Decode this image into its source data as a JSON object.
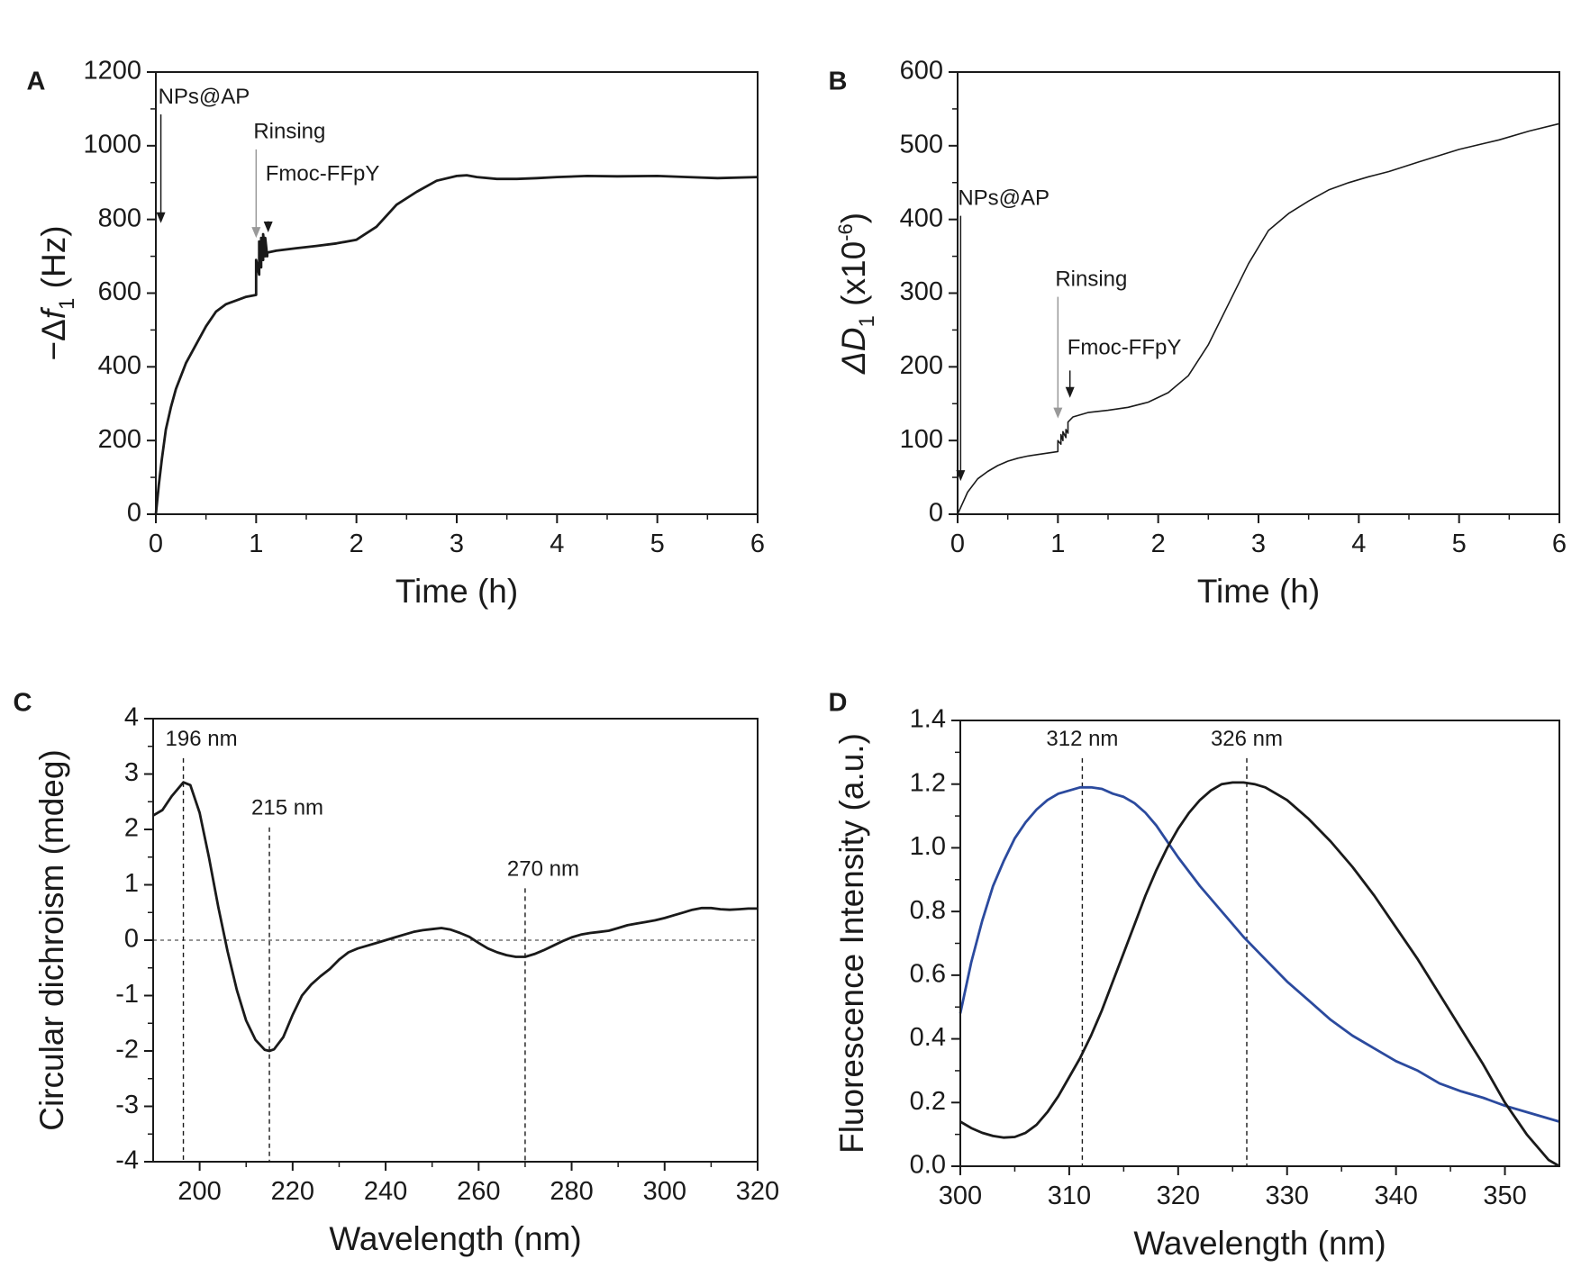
{
  "chart_data": [
    {
      "panel": "A",
      "type": "line",
      "xlabel": "Time (h)",
      "ylabel_parts": [
        "−Δ",
        "f",
        "1",
        " (Hz)"
      ],
      "xlim": [
        0,
        6
      ],
      "ylim": [
        0,
        1200
      ],
      "xticks": [
        0,
        1,
        2,
        3,
        4,
        5,
        6
      ],
      "xtick_labels": [
        "0",
        "1",
        "2",
        "3",
        "4",
        "5",
        "6"
      ],
      "yticks": [
        0,
        200,
        400,
        600,
        800,
        1000,
        1200
      ],
      "ytick_labels": [
        "0",
        "200",
        "400",
        "600",
        "800",
        "1000",
        "1200"
      ],
      "annotations": [
        {
          "text": "NPs@AP",
          "x": 0.05,
          "arrow_to": 790,
          "arrow_from": 1085,
          "text_y": 1115,
          "color": "#1a1a1a"
        },
        {
          "text": "Rinsing",
          "x": 1.0,
          "arrow_to": 750,
          "arrow_from": 990,
          "text_y": 1020,
          "color": "#999999"
        },
        {
          "text": "Fmoc-FFpY",
          "x": 1.12,
          "arrow_to": 765,
          "arrow_from": 795,
          "text_y": 905,
          "color": "#1a1a1a"
        }
      ],
      "series": [
        {
          "name": "-Δf1",
          "color": "#1a1a1a",
          "x": [
            0,
            0.03,
            0.06,
            0.1,
            0.15,
            0.2,
            0.3,
            0.4,
            0.5,
            0.6,
            0.7,
            0.8,
            0.9,
            1.0,
            1.0,
            1.03,
            1.03,
            1.05,
            1.05,
            1.07,
            1.07,
            1.09,
            1.09,
            1.11,
            1.11,
            1.2,
            1.4,
            1.6,
            1.8,
            2.0,
            2.2,
            2.4,
            2.6,
            2.8,
            3.0,
            3.1,
            3.2,
            3.4,
            3.6,
            3.8,
            4.0,
            4.3,
            4.6,
            5.0,
            5.3,
            5.6,
            6.0
          ],
          "y": [
            0,
            80,
            150,
            230,
            290,
            340,
            410,
            460,
            510,
            550,
            570,
            580,
            590,
            595,
            690,
            650,
            740,
            670,
            750,
            690,
            760,
            700,
            750,
            700,
            710,
            715,
            722,
            728,
            735,
            745,
            780,
            840,
            875,
            905,
            918,
            920,
            915,
            910,
            910,
            912,
            915,
            918,
            917,
            918,
            915,
            912,
            915
          ]
        }
      ]
    },
    {
      "panel": "B",
      "type": "line",
      "xlabel": "Time (h)",
      "ylabel_parts": [
        "Δ",
        "D",
        "1",
        " (x10",
        "-6",
        ")"
      ],
      "xlim": [
        0,
        6
      ],
      "ylim": [
        0,
        600
      ],
      "xticks": [
        0,
        1,
        2,
        3,
        4,
        5,
        6
      ],
      "xtick_labels": [
        "0",
        "1",
        "2",
        "3",
        "4",
        "5",
        "6"
      ],
      "yticks": [
        0,
        100,
        200,
        300,
        400,
        500,
        600
      ],
      "ytick_labels": [
        "0",
        "100",
        "200",
        "300",
        "400",
        "500",
        "600"
      ],
      "annotations": [
        {
          "text": "NPs@AP",
          "x": 0.03,
          "arrow_to": 45,
          "arrow_from": 405,
          "text_y": 420,
          "color": "#1a1a1a"
        },
        {
          "text": "Rinsing",
          "x": 1.0,
          "arrow_to": 130,
          "arrow_from": 295,
          "text_y": 310,
          "color": "#999999"
        },
        {
          "text": "Fmoc-FFpY",
          "x": 1.12,
          "arrow_to": 158,
          "arrow_from": 195,
          "text_y": 217,
          "color": "#1a1a1a"
        }
      ],
      "series": [
        {
          "name": "ΔD1",
          "color": "#1a1a1a",
          "x": [
            0,
            0.05,
            0.1,
            0.2,
            0.3,
            0.4,
            0.5,
            0.6,
            0.7,
            0.8,
            0.9,
            1.0,
            1.0,
            1.03,
            1.03,
            1.05,
            1.05,
            1.08,
            1.08,
            1.1,
            1.1,
            1.15,
            1.3,
            1.5,
            1.7,
            1.9,
            2.1,
            2.3,
            2.5,
            2.7,
            2.9,
            3.1,
            3.3,
            3.5,
            3.7,
            3.9,
            4.1,
            4.3,
            4.6,
            5.0,
            5.4,
            5.7,
            6.0
          ],
          "y": [
            0,
            15,
            30,
            48,
            58,
            66,
            72,
            76,
            79,
            81,
            83,
            85,
            100,
            95,
            108,
            100,
            112,
            104,
            115,
            110,
            125,
            132,
            138,
            141,
            145,
            152,
            165,
            188,
            230,
            285,
            340,
            385,
            408,
            425,
            440,
            450,
            458,
            465,
            478,
            495,
            508,
            520,
            530
          ]
        }
      ]
    },
    {
      "panel": "C",
      "type": "line",
      "xlabel": "Wavelength (nm)",
      "ylabel_parts": [
        "Circular dichroism (mdeg)"
      ],
      "xlim": [
        190,
        320
      ],
      "ylim": [
        -4,
        4
      ],
      "xticks": [
        200,
        220,
        240,
        260,
        280,
        300,
        320
      ],
      "xtick_labels": [
        "200",
        "220",
        "240",
        "260",
        "280",
        "300",
        "320"
      ],
      "yticks": [
        -4,
        -3,
        -2,
        -1,
        0,
        1,
        2,
        3,
        4
      ],
      "ytick_labels": [
        "-4",
        "-3",
        "-2",
        "-1",
        "0",
        "1",
        "2",
        "3",
        "4"
      ],
      "zero_line": true,
      "peak_markers": [
        {
          "label": "196 nm",
          "x": 196.5,
          "y_from": 3.45,
          "y_to": -4
        },
        {
          "label": "215 nm",
          "x": 215,
          "y_from": 2.2,
          "y_to": -4
        },
        {
          "label": "270 nm",
          "x": 270,
          "y_from": 1.1,
          "y_to": -4
        }
      ],
      "series": [
        {
          "name": "CD",
          "color": "#1a1a1a",
          "x": [
            190,
            192,
            194,
            196.5,
            198,
            200,
            202,
            204,
            206,
            208,
            210,
            212,
            214,
            215,
            216,
            218,
            220,
            222,
            224,
            226,
            228,
            230,
            232,
            234,
            236,
            238,
            240,
            242,
            244,
            246,
            248,
            250,
            252,
            254,
            256,
            258,
            260,
            262,
            264,
            266,
            268,
            270,
            272,
            274,
            276,
            278,
            280,
            282,
            284,
            286,
            288,
            290,
            292,
            294,
            296,
            298,
            300,
            302,
            304,
            306,
            308,
            310,
            312,
            314,
            316,
            318,
            320
          ],
          "y": [
            2.25,
            2.35,
            2.6,
            2.85,
            2.8,
            2.3,
            1.5,
            0.6,
            -0.2,
            -0.9,
            -1.45,
            -1.8,
            -1.98,
            -2.0,
            -1.97,
            -1.75,
            -1.35,
            -1.0,
            -0.8,
            -0.65,
            -0.52,
            -0.35,
            -0.22,
            -0.15,
            -0.1,
            -0.05,
            0.0,
            0.05,
            0.1,
            0.15,
            0.18,
            0.2,
            0.22,
            0.19,
            0.13,
            0.06,
            -0.05,
            -0.15,
            -0.22,
            -0.27,
            -0.3,
            -0.3,
            -0.25,
            -0.18,
            -0.1,
            -0.02,
            0.05,
            0.1,
            0.13,
            0.15,
            0.17,
            0.22,
            0.27,
            0.3,
            0.33,
            0.36,
            0.4,
            0.45,
            0.5,
            0.55,
            0.58,
            0.58,
            0.56,
            0.55,
            0.56,
            0.57,
            0.57
          ]
        }
      ]
    },
    {
      "panel": "D",
      "type": "line",
      "xlabel": "Wavelength (nm)",
      "ylabel_parts": [
        "Fluorescence Intensity (a.u.)"
      ],
      "xlim": [
        300,
        355
      ],
      "ylim": [
        0,
        1.4
      ],
      "xticks": [
        300,
        310,
        320,
        330,
        340,
        350
      ],
      "xtick_labels": [
        "300",
        "310",
        "320",
        "330",
        "340",
        "350"
      ],
      "yticks": [
        0.0,
        0.2,
        0.4,
        0.6,
        0.8,
        1.0,
        1.2,
        1.4
      ],
      "ytick_labels": [
        "0.0",
        "0.2",
        "0.4",
        "0.6",
        "0.8",
        "1.0",
        "1.2",
        "1.4"
      ],
      "peak_markers": [
        {
          "label": "312 nm",
          "x": 311.2,
          "y_from": 1.31,
          "y_to": 0
        },
        {
          "label": "326 nm",
          "x": 326.3,
          "y_from": 1.31,
          "y_to": 0
        }
      ],
      "series": [
        {
          "name": "blue",
          "color": "#2b4a9e",
          "x": [
            300,
            301,
            302,
            303,
            304,
            305,
            306,
            307,
            308,
            309,
            310,
            311,
            312,
            313,
            314,
            315,
            316,
            317,
            318,
            319,
            320,
            322,
            324,
            326,
            328,
            330,
            332,
            334,
            336,
            338,
            340,
            342,
            344,
            346,
            348,
            350,
            352,
            355
          ],
          "y": [
            0.48,
            0.64,
            0.77,
            0.88,
            0.96,
            1.03,
            1.08,
            1.12,
            1.15,
            1.17,
            1.18,
            1.19,
            1.19,
            1.185,
            1.17,
            1.16,
            1.14,
            1.11,
            1.07,
            1.02,
            0.97,
            0.88,
            0.8,
            0.72,
            0.65,
            0.58,
            0.52,
            0.46,
            0.41,
            0.37,
            0.33,
            0.3,
            0.26,
            0.235,
            0.215,
            0.19,
            0.17,
            0.14
          ]
        },
        {
          "name": "black",
          "color": "#1a1a1a",
          "x": [
            300,
            301,
            302,
            303,
            304,
            305,
            306,
            307,
            308,
            309,
            310,
            311,
            312,
            313,
            314,
            315,
            316,
            317,
            318,
            319,
            320,
            321,
            322,
            323,
            324,
            325,
            326,
            327,
            328,
            329,
            330,
            332,
            334,
            336,
            338,
            340,
            342,
            344,
            346,
            348,
            350,
            352,
            354,
            355
          ],
          "y": [
            0.14,
            0.12,
            0.105,
            0.095,
            0.09,
            0.092,
            0.105,
            0.13,
            0.17,
            0.22,
            0.28,
            0.34,
            0.41,
            0.49,
            0.58,
            0.67,
            0.76,
            0.85,
            0.93,
            1.0,
            1.06,
            1.11,
            1.15,
            1.18,
            1.2,
            1.205,
            1.205,
            1.2,
            1.19,
            1.17,
            1.15,
            1.09,
            1.02,
            0.94,
            0.85,
            0.75,
            0.65,
            0.54,
            0.43,
            0.32,
            0.2,
            0.1,
            0.02,
            0.0
          ]
        }
      ]
    }
  ]
}
